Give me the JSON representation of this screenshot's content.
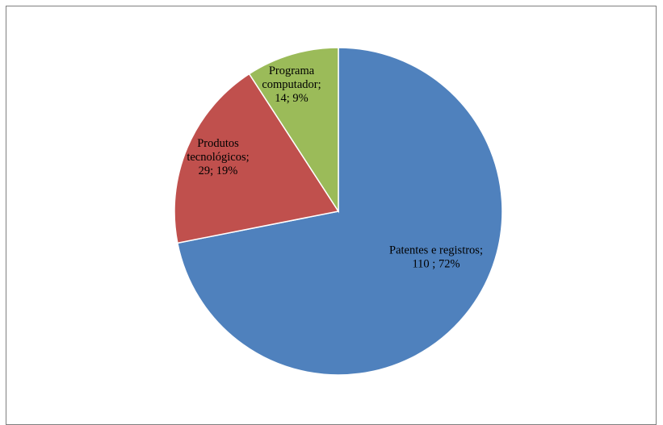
{
  "chart_data": {
    "type": "pie",
    "start_angle_deg": 0,
    "direction": "clockwise",
    "slices": [
      {
        "label_lines": [
          "Patentes e registros;",
          "110 ; 72%"
        ],
        "category": "Patentes e registros",
        "value": 110,
        "percent": "72%",
        "color": "#4f81bd"
      },
      {
        "label_lines": [
          "Produtos",
          "tecnológicos;",
          "29; 19%"
        ],
        "category": "Produtos tecnológicos",
        "value": 29,
        "percent": "19%",
        "color": "#c0504d"
      },
      {
        "label_lines": [
          "Programa",
          "computador;",
          "14; 9%"
        ],
        "category": "Programa computador",
        "value": 14,
        "percent": "9%",
        "color": "#9bbb59"
      }
    ]
  }
}
